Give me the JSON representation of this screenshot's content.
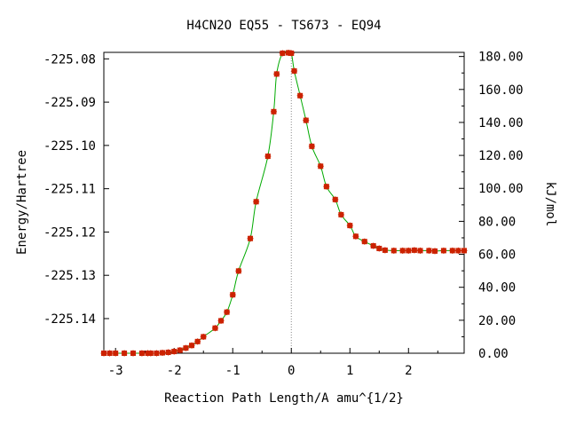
{
  "chart_data": {
    "type": "line",
    "title": "H4CN2O   EQ55 - TS673 - EQ94",
    "xlabel": "Reaction Path Length/A amu^{1/2}",
    "ylabel": "Energy/Hartree",
    "y2label": "kJ/mol",
    "xlim": [
      -3.2,
      2.95
    ],
    "ylim": [
      -225.148,
      -225.0785
    ],
    "y2lim": [
      0,
      182.5
    ],
    "x_ticks": [
      -3,
      -2,
      -1,
      0,
      1,
      2
    ],
    "x_tick_labels": [
      "-3",
      "-2",
      "-1",
      "0",
      "1",
      "2"
    ],
    "y_ticks": [
      -225.08,
      -225.09,
      -225.1,
      -225.11,
      -225.12,
      -225.13,
      -225.14
    ],
    "y_tick_labels": [
      "-225.08",
      "-225.09",
      "-225.10",
      "-225.11",
      "-225.12",
      "-225.13",
      "-225.14"
    ],
    "y2_ticks": [
      0,
      20,
      40,
      60,
      80,
      100,
      120,
      140,
      160,
      180
    ],
    "y2_tick_labels": [
      "0.00",
      "20.00",
      "40.00",
      "60.00",
      "80.00",
      "100.00",
      "120.00",
      "140.00",
      "160.00",
      "180.00"
    ],
    "ts_x": 0,
    "series": [
      {
        "curve_color": "#00aa00",
        "marker_color": "#cc2200",
        "x": [
          -3.2,
          -3.1,
          -3.0,
          -2.85,
          -2.7,
          -2.55,
          -2.45,
          -2.4,
          -2.3,
          -2.2,
          -2.1,
          -2.0,
          -1.9,
          -1.8,
          -1.7,
          -1.6,
          -1.5,
          -1.3,
          -1.2,
          -1.1,
          -1.0,
          -0.9,
          -0.7,
          -0.6,
          -0.4,
          -0.3,
          -0.25,
          -0.15,
          -0.05,
          0.0,
          0.05,
          0.15,
          0.25,
          0.35,
          0.5,
          0.6,
          0.75,
          0.85,
          1.0,
          1.1,
          1.25,
          1.4,
          1.5,
          1.6,
          1.75,
          1.9,
          2.0,
          2.1,
          2.2,
          2.35,
          2.45,
          2.6,
          2.75,
          2.85,
          2.95
        ],
        "y": [
          -225.148,
          -225.148,
          -225.148,
          -225.148,
          -225.148,
          -225.148,
          -225.148,
          -225.148,
          -225.148,
          -225.1479,
          -225.1478,
          -225.1476,
          -225.1473,
          -225.1468,
          -225.1462,
          -225.1453,
          -225.1442,
          -225.1422,
          -225.1405,
          -225.1385,
          -225.1345,
          -225.129,
          -225.1215,
          -225.113,
          -225.1025,
          -225.0922,
          -225.0835,
          -225.0787,
          -225.0786,
          -225.0787,
          -225.0828,
          -225.0885,
          -225.0942,
          -225.1002,
          -225.1048,
          -225.1095,
          -225.1125,
          -225.116,
          -225.1185,
          -225.121,
          -225.1222,
          -225.1232,
          -225.1238,
          -225.1242,
          -225.1243,
          -225.1243,
          -225.1243,
          -225.1242,
          -225.1243,
          -225.1243,
          -225.1244,
          -225.1243,
          -225.1243,
          -225.1243,
          -225.1243
        ]
      }
    ]
  }
}
